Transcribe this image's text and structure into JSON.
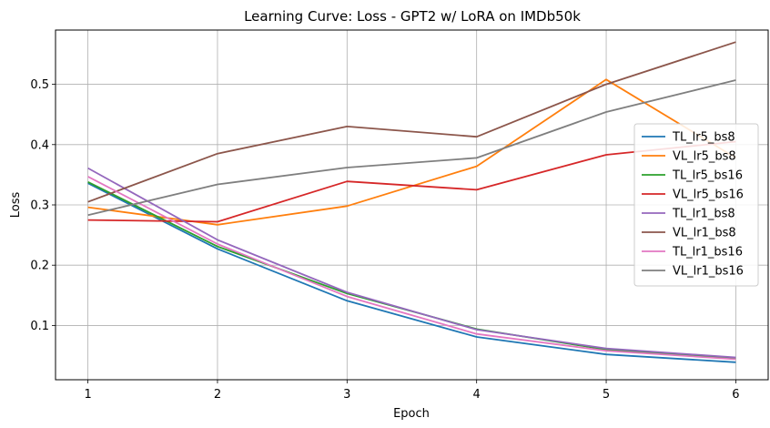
{
  "chart_data": {
    "type": "line",
    "title": "Learning Curve: Loss - GPT2 w/ LoRA on IMDb50k",
    "xlabel": "Epoch",
    "ylabel": "Loss",
    "x": [
      1,
      2,
      3,
      4,
      5,
      6
    ],
    "xlim": [
      0.75,
      6.25
    ],
    "ylim": [
      0.01,
      0.59
    ],
    "xticks": [
      1,
      2,
      3,
      4,
      5,
      6
    ],
    "yticks": [
      0.1,
      0.2,
      0.3,
      0.4,
      0.5
    ],
    "ytick_labels": [
      "0.1",
      "0.2",
      "0.3",
      "0.4",
      "0.5"
    ],
    "grid": true,
    "legend_position": "center-right",
    "series": [
      {
        "name": "TL_lr5_bs8",
        "color": "#1f77b4",
        "values": [
          0.336,
          0.227,
          0.141,
          0.081,
          0.052,
          0.039
        ]
      },
      {
        "name": "VL_lr5_bs8",
        "color": "#ff7f0e",
        "values": [
          0.296,
          0.267,
          0.298,
          0.364,
          0.508,
          0.378
        ]
      },
      {
        "name": "TL_lr5_bs16",
        "color": "#2ca02c",
        "values": [
          0.338,
          0.231,
          0.153,
          0.094,
          0.06,
          0.045
        ]
      },
      {
        "name": "VL_lr5_bs16",
        "color": "#d62728",
        "values": [
          0.275,
          0.272,
          0.339,
          0.325,
          0.383,
          0.405
        ]
      },
      {
        "name": "TL_lr1_bs8",
        "color": "#9467bd",
        "values": [
          0.361,
          0.242,
          0.155,
          0.093,
          0.062,
          0.047
        ]
      },
      {
        "name": "VL_lr1_bs8",
        "color": "#8c564b",
        "values": [
          0.305,
          0.385,
          0.43,
          0.413,
          0.5,
          0.57
        ]
      },
      {
        "name": "TL_lr1_bs16",
        "color": "#e377c2",
        "values": [
          0.347,
          0.235,
          0.148,
          0.086,
          0.058,
          0.044
        ]
      },
      {
        "name": "VL_lr1_bs16",
        "color": "#7f7f7f",
        "values": [
          0.283,
          0.334,
          0.362,
          0.378,
          0.454,
          0.507
        ]
      }
    ]
  }
}
